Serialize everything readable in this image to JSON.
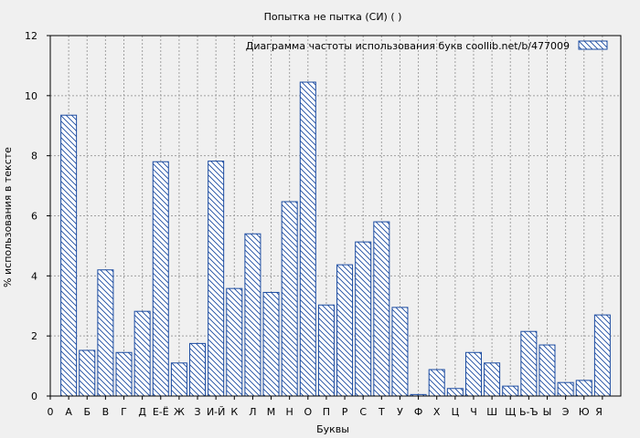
{
  "chart_data": {
    "type": "bar",
    "title": "Попытка не пытка (СИ) ( )",
    "xlabel": "Буквы",
    "ylabel": "% использования в тексте",
    "ylim": [
      0,
      12
    ],
    "yticks": [
      0,
      2,
      4,
      6,
      8,
      10,
      12
    ],
    "grid": true,
    "legend_position": "top-right",
    "leading_tick": "0",
    "categories": [
      "А",
      "Б",
      "В",
      "Г",
      "Д",
      "Е-Ё",
      "Ж",
      "З",
      "И-Й",
      "К",
      "Л",
      "М",
      "Н",
      "О",
      "П",
      "Р",
      "С",
      "Т",
      "У",
      "Ф",
      "Х",
      "Ц",
      "Ч",
      "Ш",
      "Щ",
      "Ь-Ъ",
      "Ы",
      "Э",
      "Ю",
      "Я"
    ],
    "series": [
      {
        "name": "Диаграмма частоты использования букв  coollib.net/b/477009",
        "values": [
          9.35,
          1.52,
          4.2,
          1.45,
          2.82,
          7.8,
          1.1,
          1.75,
          7.82,
          3.58,
          5.4,
          3.45,
          6.47,
          10.45,
          3.03,
          4.37,
          5.13,
          5.8,
          2.95,
          0.05,
          0.88,
          0.25,
          1.45,
          1.1,
          0.33,
          2.15,
          1.7,
          0.45,
          0.52,
          2.7
        ]
      }
    ],
    "colors": {
      "bar_stroke": "#1a4aa0",
      "hatch": "#1a4aa0",
      "grid": "#a0a0a0",
      "background": "#f0f0f0"
    }
  }
}
